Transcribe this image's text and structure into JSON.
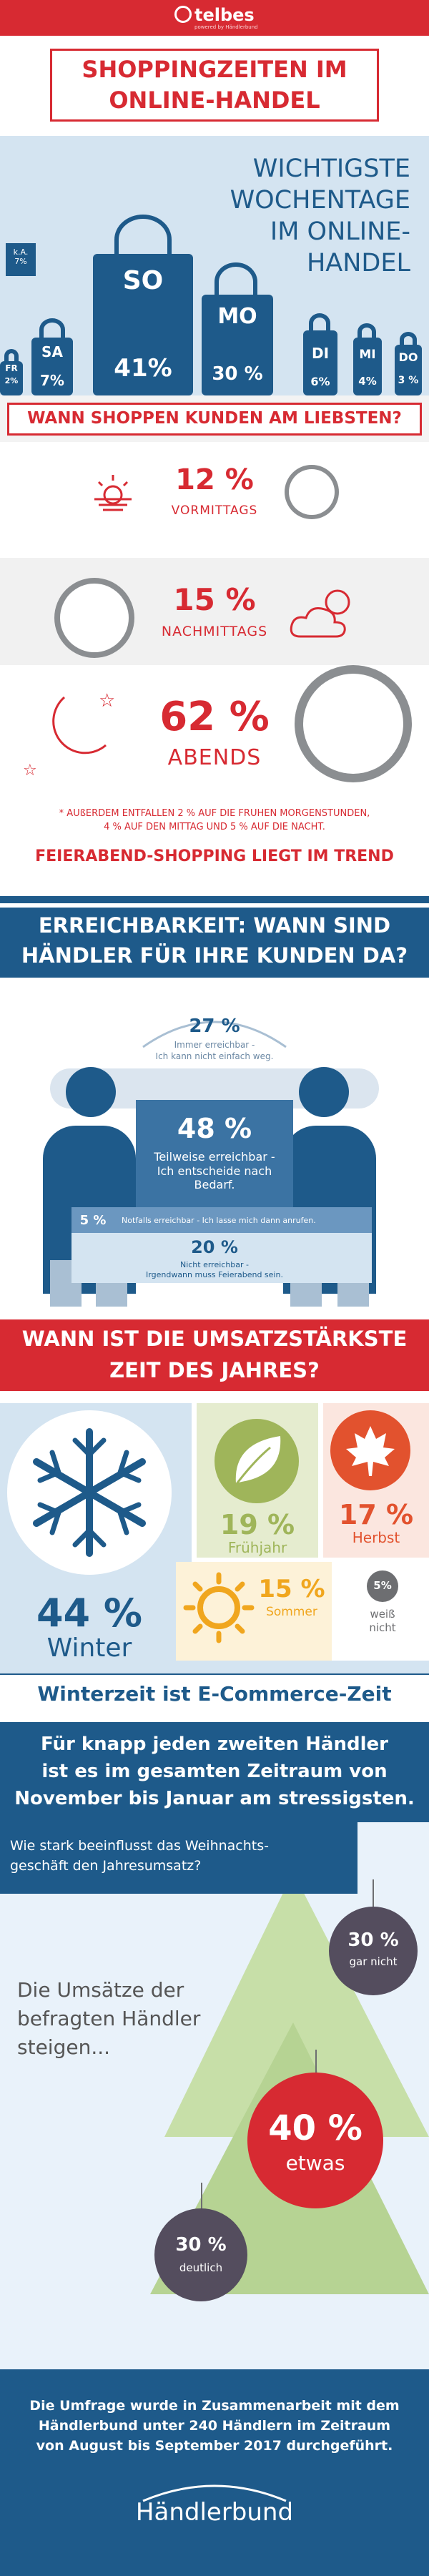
{
  "header": {
    "logo": "telbes",
    "logo_sub": "powered by Händlerbund"
  },
  "title": {
    "line1": "SHOPPINGZEITEN IM",
    "line2": "ONLINE-HANDEL"
  },
  "chart_data": [
    {
      "type": "bar",
      "title": "WICHTIGSTE WOCHENTAGE IM ONLINE-HANDEL",
      "title_lines": [
        "WICHTIGSTE WOCHENTAGE",
        "IM ONLINE-",
        "HANDEL"
      ],
      "categories": [
        "FR",
        "SA",
        "SO",
        "MO",
        "DI",
        "MI",
        "DO",
        "k.A."
      ],
      "values": [
        2,
        7,
        41,
        30,
        6,
        4,
        3,
        7
      ],
      "labels": [
        "2%",
        "7%",
        "41%",
        "30 %",
        "6%",
        "4%",
        "3 %",
        "7%"
      ]
    },
    {
      "type": "bar",
      "title": "WANN SHOPPEN KUNDEN AM LIEBSTEN?",
      "categories": [
        "VORMITTAGS",
        "NACHMITTAGS",
        "ABENDS"
      ],
      "values": [
        12,
        15,
        62
      ],
      "labels": [
        "12 %",
        "15 %",
        "62 %"
      ]
    },
    {
      "type": "bar",
      "title": "ERREICHBARKEIT: WANN SIND HÄNDLER FÜR IHRE KUNDEN DA?",
      "categories": [
        "Immer erreichbar",
        "Teilweise erreichbar",
        "Notfalls erreichbar",
        "Nicht erreichbar"
      ],
      "values": [
        27,
        48,
        5,
        20
      ]
    },
    {
      "type": "bar",
      "title": "WANN IST DIE UMSATZSTÄRKSTE ZEIT DES JAHRES?",
      "categories": [
        "Winter",
        "Frühjahr",
        "Herbst",
        "Sommer",
        "weiß nicht"
      ],
      "values": [
        44,
        19,
        17,
        15,
        5
      ]
    },
    {
      "type": "pie",
      "title": "Die Umsätze der befragten Händler steigen...",
      "categories": [
        "gar nicht",
        "etwas",
        "deutlich"
      ],
      "values": [
        30,
        40,
        30
      ]
    }
  ],
  "week": {
    "title_lines": [
      "WICHTIGSTE WOCHENTAGE",
      "IM ONLINE-",
      "HANDEL"
    ],
    "ka_label": "k.A.",
    "ka_pct": "7%",
    "bags": [
      {
        "day": "FR",
        "pct": "2%"
      },
      {
        "day": "SA",
        "pct": "7%"
      },
      {
        "day": "SO",
        "pct": "41%"
      },
      {
        "day": "MO",
        "pct": "30 %"
      },
      {
        "day": "DI",
        "pct": "6%"
      },
      {
        "day": "MI",
        "pct": "4%"
      },
      {
        "day": "DO",
        "pct": "3 %"
      }
    ]
  },
  "shopping": {
    "heading": "WANN SHOPPEN KUNDEN AM LIEBSTEN?",
    "morning_pct": "12 %",
    "morning_label": "VORMITTAGS",
    "afternoon_pct": "15 %",
    "afternoon_label": "NACHMITTAGS",
    "evening_pct": "62 %",
    "evening_label": "ABENDS",
    "footnote1": "* AUßERDEM ENTFALLEN 2 % AUF DIE FRÜHEN MORGENSTUNDEN,",
    "footnote2": "4 % AUF DEN MITTAG UND 5 % AUF DIE NACHT.",
    "trend": "FEIERABEND-SHOPPING LIEGT IM TREND"
  },
  "reach": {
    "heading1": "ERREICHBARKEIT: WANN SIND",
    "heading2": "HÄNDLER FÜR IHRE KUNDEN DA?",
    "always_pct": "27 %",
    "always_l1": "Immer erreichbar -",
    "always_l2": "Ich kann nicht einfach weg.",
    "partly_pct": "48 %",
    "partly_l1": "Teilweise erreichbar -",
    "partly_l2": "Ich entscheide nach Bedarf.",
    "emergency_pct": "5 %",
    "emergency_label": "Notfalls erreichbar - Ich lasse mich dann anrufen.",
    "never_pct": "20 %",
    "never_l1": "Nicht erreichbar -",
    "never_l2": "Irgendwann muss Feierabend sein."
  },
  "season": {
    "heading1": "WANN IST DIE UMSATZSTÄRKSTE",
    "heading2": "ZEIT DES JAHRES?",
    "winter_pct": "44 %",
    "winter_label": "Winter",
    "spring_pct": "19 %",
    "spring_label": "Frühjahr",
    "autumn_pct": "17 %",
    "autumn_label": "Herbst",
    "summer_pct": "15 %",
    "summer_label": "Sommer",
    "unknown_pct": "5%",
    "unknown_l1": "weiß",
    "unknown_l2": "nicht"
  },
  "winter": {
    "banner": "Winterzeit ist E-Commerce-Zeit",
    "claim1": "Für knapp jeden zweiten Händler",
    "claim2": "ist es im gesamten Zeitraum von",
    "claim3": "November bis Januar am stressigsten.",
    "question1": "Wie stark beeinflusst das Weihnachts-",
    "question2": "geschäft den Jahresumsatz?",
    "intro1": "Die Umsätze der",
    "intro2": "befragten Händler",
    "intro3": "steigen...",
    "ball1_pct": "30 %",
    "ball1_label": "gar nicht",
    "ball2_pct": "40 %",
    "ball2_label": "etwas",
    "ball3_pct": "30 %",
    "ball3_label": "deutlich"
  },
  "footer": {
    "line1": "Die Umfrage wurde in Zusammenarbeit mit dem",
    "line2": "Händlerbund unter 240 Händlern im Zeitraum",
    "line3": "von August bis September 2017 durchgeführt.",
    "logo": "Händlerbund"
  }
}
